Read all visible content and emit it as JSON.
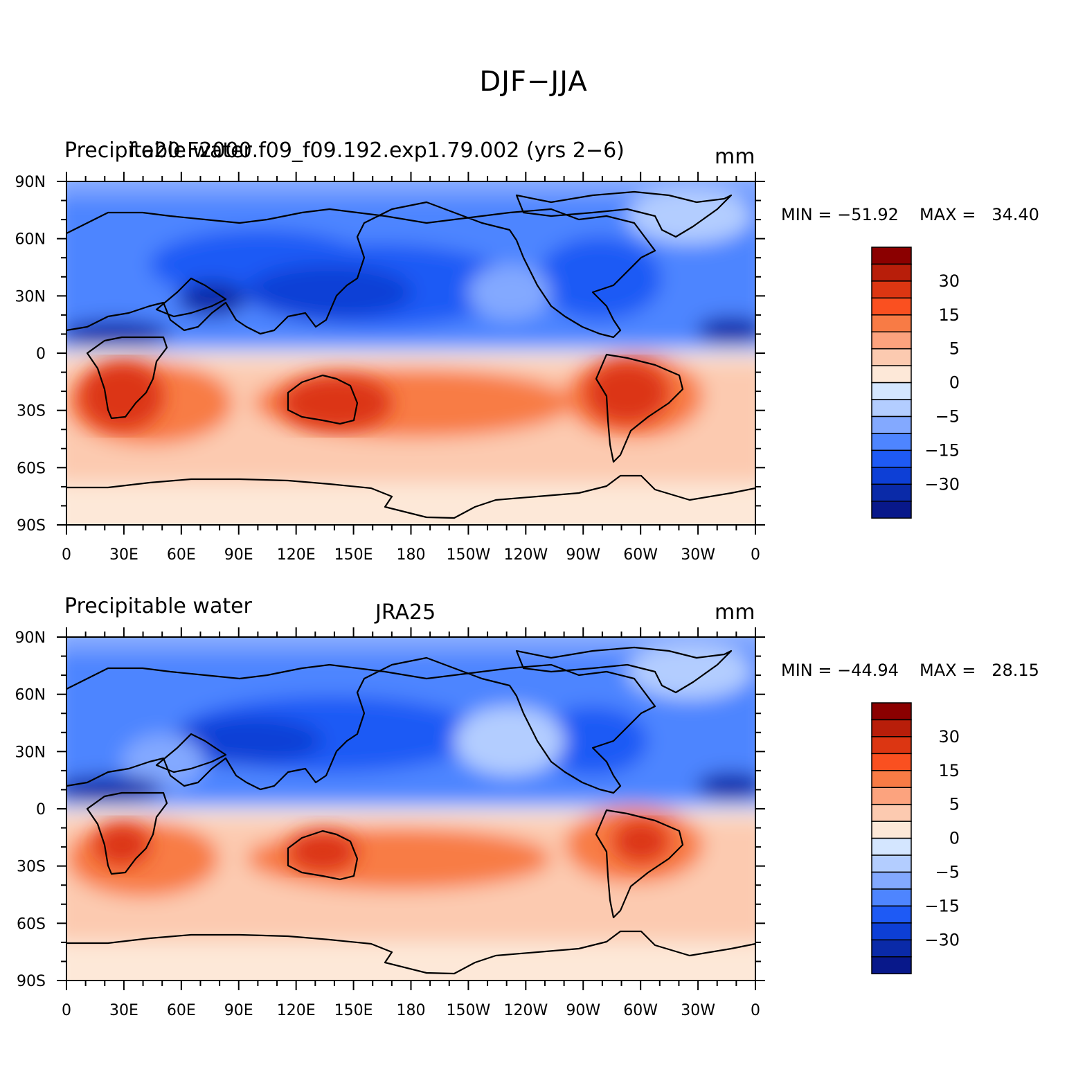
{
  "title": "DJF−JJA",
  "lat_ticks": [
    "90N",
    "60N",
    "30N",
    "0",
    "30S",
    "60S",
    "90S"
  ],
  "lon_ticks": [
    "0",
    "30E",
    "60E",
    "90E",
    "120E",
    "150E",
    "180",
    "150W",
    "120W",
    "90W",
    "60W",
    "30W",
    "0"
  ],
  "colorbar": {
    "labels": [
      "30",
      "15",
      "5",
      "0",
      "−5",
      "−15",
      "−30"
    ],
    "colors": [
      "#8b0000",
      "#b81e0a",
      "#dc3612",
      "#fa5020",
      "#f87b45",
      "#fca37e",
      "#fccab0",
      "#fde8d8",
      "#d4e6ff",
      "#b3cdff",
      "#83a9ff",
      "#4e85ff",
      "#1e5af5",
      "#0d3fd6",
      "#0a2aa8",
      "#08188a"
    ]
  },
  "panels": [
    {
      "variable": "Precipitable water",
      "case": "f.e20.F2000.f09_f09.192.exp1.79.002 (yrs 2−6)",
      "units": "mm",
      "min_label": "MIN = −51.92",
      "max_label": "MAX =   34.40",
      "min": -51.92,
      "max": 34.4
    },
    {
      "variable": "Precipitable water",
      "case": "JRA25",
      "units": "mm",
      "min_label": "MIN = −44.94",
      "max_label": "MAX =   28.15",
      "min": -44.94,
      "max": 28.15
    }
  ]
}
